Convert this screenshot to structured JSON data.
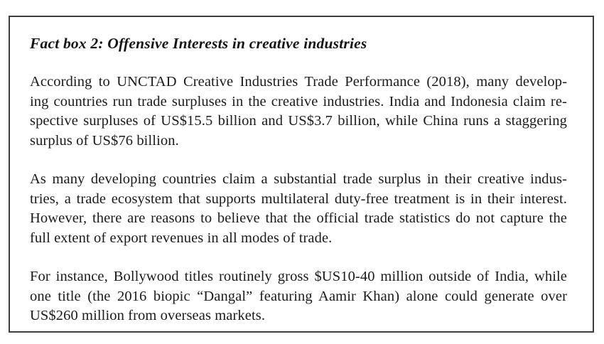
{
  "factbox": {
    "title": "Fact box 2: Offensive Interests in creative industries",
    "paragraphs": [
      {
        "lines": [
          "According to UNCTAD Creative Industries Trade Performance (2018), many develop-",
          "ing countries run trade surpluses in the creative industries. India and Indonesia claim re-",
          "spective surpluses of US$15.5 billion and US$3.7 billion, while China runs a staggering",
          "surplus of US$76 billion."
        ]
      },
      {
        "lines": [
          "As many developing countries claim a substantial trade surplus in their creative indus-",
          "tries, a trade ecosystem that supports multilateral duty-free treatment is in their interest.",
          "However, there are reasons to believe that the official trade statistics do not capture the",
          "full extent of export revenues in all modes of trade."
        ]
      },
      {
        "lines": [
          "For instance, Bollywood titles routinely gross $US10-40 million outside of India, while",
          "one title (the 2016 biopic “Dangal” featuring Aamir Khan) alone could generate over",
          "US$260 million from overseas markets."
        ]
      }
    ]
  },
  "colors": {
    "border": "#3d3d3d",
    "text": "#1a1a1a",
    "background": "#ffffff"
  }
}
